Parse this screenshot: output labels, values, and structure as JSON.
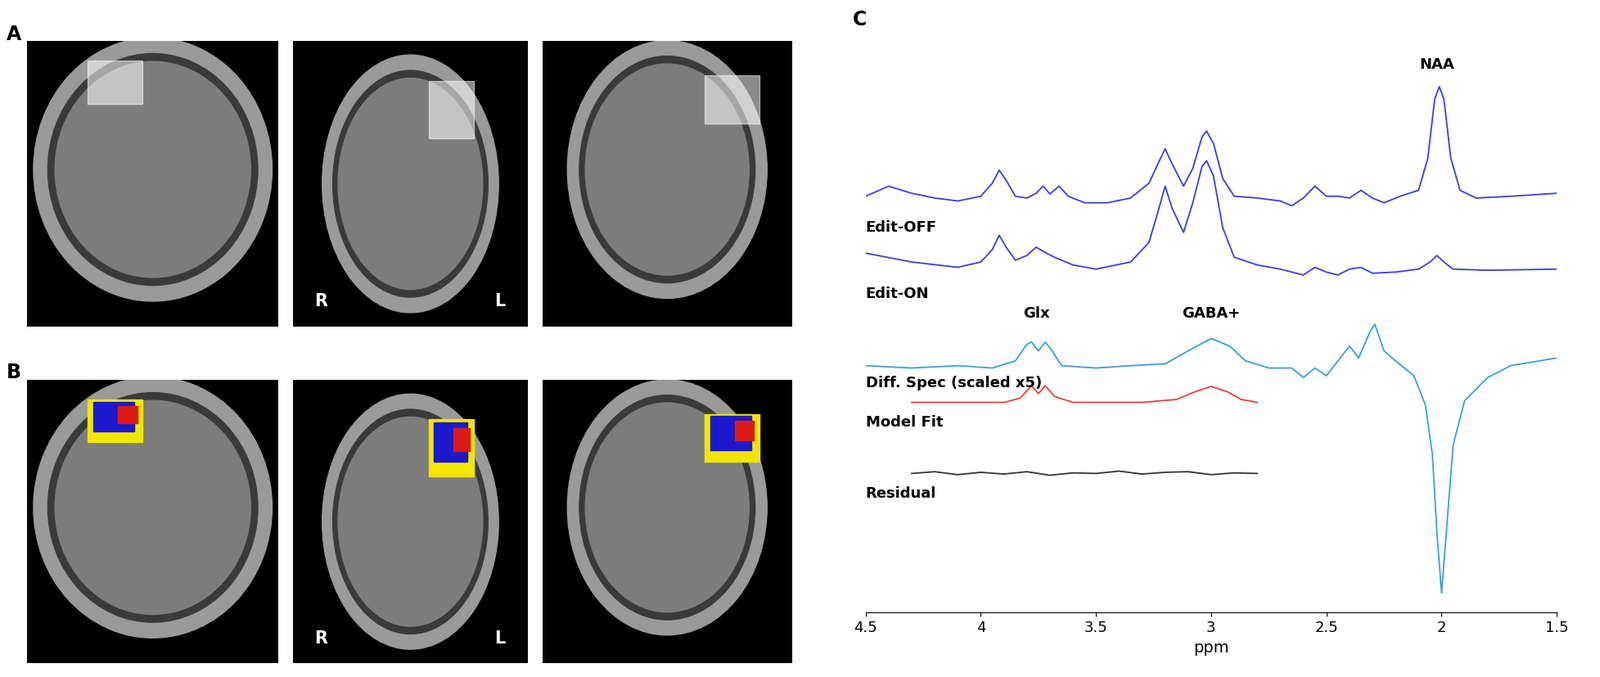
{
  "panels": [
    {
      "label": "A",
      "markers": [
        "R",
        "L"
      ]
    },
    {
      "label": "B",
      "markers": [
        "R",
        "L"
      ]
    }
  ],
  "chart_data": {
    "type": "line",
    "panel_label": "C",
    "x_label": "ppm",
    "xlim": [
      4.5,
      1.5
    ],
    "xticks": [
      4.5,
      4,
      3.5,
      3,
      2.5,
      2,
      1.5
    ],
    "ylim": [
      0,
      100
    ],
    "tick_labels": "x",
    "annotations": [
      "NAA",
      "Glx",
      "GABA+"
    ],
    "series": [
      {
        "name": "Edit-OFF",
        "color": "#3d3de0",
        "x": [
          4.5,
          4.4,
          4.3,
          4.2,
          4.1,
          4.0,
          3.95,
          3.92,
          3.89,
          3.85,
          3.8,
          3.76,
          3.73,
          3.7,
          3.66,
          3.62,
          3.55,
          3.45,
          3.35,
          3.27,
          3.22,
          3.2,
          3.17,
          3.12,
          3.08,
          3.04,
          3.02,
          2.99,
          2.95,
          2.9,
          2.8,
          2.7,
          2.65,
          2.6,
          2.55,
          2.5,
          2.45,
          2.4,
          2.35,
          2.3,
          2.25,
          2.18,
          2.1,
          2.06,
          2.03,
          2.01,
          1.99,
          1.96,
          1.92,
          1.85,
          1.7,
          1.5
        ],
        "values": [
          70.3,
          72.0,
          70.8,
          70.0,
          69.5,
          70.3,
          72.5,
          74.7,
          73.0,
          70.3,
          70.0,
          70.8,
          72.0,
          70.7,
          72.0,
          70.3,
          69.2,
          69.2,
          70.0,
          72.5,
          76.7,
          78.3,
          75.8,
          72.0,
          75.0,
          80.3,
          81.3,
          79.2,
          73.3,
          70.3,
          70.0,
          69.5,
          68.7,
          70.0,
          72.0,
          70.3,
          70.3,
          70.0,
          71.3,
          70.0,
          69.2,
          70.3,
          71.3,
          76.7,
          86.7,
          88.8,
          86.7,
          76.7,
          71.3,
          70.0,
          70.3,
          70.8
        ]
      },
      {
        "name": "Edit-ON",
        "color": "#3d3de0",
        "x": [
          4.5,
          4.3,
          4.1,
          4.0,
          3.95,
          3.92,
          3.89,
          3.85,
          3.8,
          3.76,
          3.72,
          3.68,
          3.6,
          3.5,
          3.35,
          3.27,
          3.22,
          3.2,
          3.17,
          3.12,
          3.08,
          3.04,
          3.02,
          2.99,
          2.95,
          2.9,
          2.8,
          2.7,
          2.6,
          2.55,
          2.5,
          2.45,
          2.4,
          2.35,
          2.3,
          2.2,
          2.1,
          2.05,
          2.02,
          1.99,
          1.95,
          1.8,
          1.5
        ],
        "values": [
          60.7,
          59.2,
          58.3,
          59.2,
          61.3,
          63.7,
          61.7,
          59.5,
          60.3,
          61.7,
          60.8,
          60.0,
          58.7,
          58.0,
          59.2,
          62.5,
          69.2,
          72.0,
          68.3,
          64.2,
          69.2,
          75.3,
          76.3,
          73.7,
          65.0,
          60.0,
          58.7,
          58.0,
          57.0,
          58.3,
          57.5,
          57.0,
          58.0,
          58.3,
          57.3,
          57.5,
          58.0,
          59.2,
          60.3,
          59.2,
          58.0,
          57.8,
          58.0
        ]
      },
      {
        "name": "Diff. Spec (scaled x5)",
        "color": "#3a9fd6",
        "x": [
          4.5,
          4.3,
          4.1,
          3.95,
          3.85,
          3.8,
          3.78,
          3.75,
          3.72,
          3.69,
          3.65,
          3.5,
          3.35,
          3.2,
          3.1,
          3.0,
          2.92,
          2.85,
          2.75,
          2.65,
          2.6,
          2.55,
          2.5,
          2.45,
          2.4,
          2.36,
          2.31,
          2.29,
          2.25,
          2.2,
          2.12,
          2.07,
          2.04,
          2.02,
          2.0,
          1.98,
          1.95,
          1.9,
          1.8,
          1.7,
          1.5
        ],
        "values": [
          41.7,
          41.3,
          41.7,
          41.3,
          42.5,
          45.3,
          45.7,
          44.2,
          45.7,
          44.2,
          41.7,
          41.3,
          41.7,
          42.0,
          44.2,
          46.3,
          45.0,
          42.5,
          41.3,
          41.3,
          39.7,
          41.3,
          40.0,
          42.5,
          45.0,
          43.0,
          47.5,
          48.7,
          44.2,
          42.5,
          40.0,
          35.0,
          26.7,
          13.3,
          3.3,
          13.3,
          28.3,
          35.8,
          39.7,
          41.7,
          43.0
        ]
      },
      {
        "name": "Model Fit",
        "color": "#e8413a",
        "x": [
          4.3,
          3.9,
          3.83,
          3.78,
          3.75,
          3.72,
          3.68,
          3.6,
          3.3,
          3.15,
          3.07,
          3.0,
          2.93,
          2.87,
          2.8
        ],
        "values": [
          35.5,
          35.5,
          36.2,
          38.3,
          37.0,
          38.3,
          36.5,
          35.5,
          35.5,
          36.0,
          37.3,
          38.2,
          37.3,
          36.0,
          35.5
        ]
      },
      {
        "name": "Residual",
        "color": "#333333",
        "x": [
          4.3,
          4.2,
          4.1,
          4.0,
          3.9,
          3.8,
          3.7,
          3.6,
          3.5,
          3.4,
          3.3,
          3.2,
          3.1,
          3.0,
          2.9,
          2.8
        ],
        "values": [
          23.5,
          23.8,
          23.3,
          23.7,
          23.4,
          23.8,
          23.2,
          23.6,
          23.5,
          23.9,
          23.4,
          23.7,
          23.8,
          23.3,
          23.6,
          23.5
        ]
      }
    ]
  }
}
